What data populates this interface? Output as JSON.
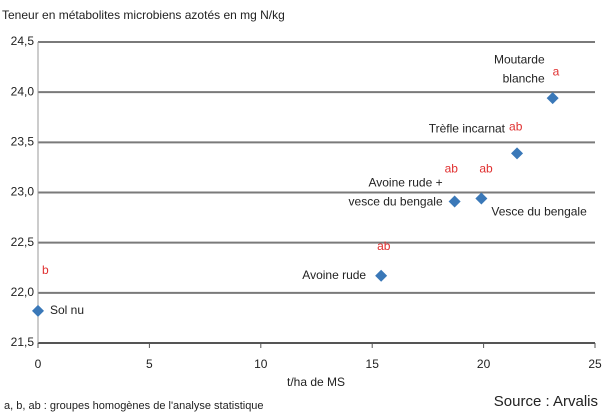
{
  "chart_data": {
    "type": "scatter",
    "y_label": "Teneur en métabolites microbiens azotés en mg N/kg",
    "x_label": "t/ha de MS",
    "footnote": "a, b, ab : groupes homogènes de l'analyse statistique",
    "source": "Source : Arvalis",
    "color": "#3a78b8",
    "group_color": "#e03030",
    "grid": true,
    "x": [
      0,
      15.4,
      18.7,
      19.9,
      21.5,
      23.1
    ],
    "values": [
      21.82,
      22.17,
      22.91,
      22.94,
      23.39,
      23.94
    ],
    "point_labels": [
      [
        "Sol nu"
      ],
      [
        "Avoine rude"
      ],
      [
        "Avoine rude +",
        "vesce du bengale"
      ],
      [
        "Vesce du bengale"
      ],
      [
        "Trèfle incarnat"
      ],
      [
        "Moutarde",
        "blanche"
      ]
    ],
    "group_labels": [
      "b",
      "ab",
      "ab",
      "ab",
      "ab",
      "a"
    ],
    "xlim": [
      0,
      25
    ],
    "xticks": [
      0,
      5,
      10,
      15,
      20,
      25
    ],
    "ylim": [
      21.5,
      24.5
    ],
    "yticks": [
      {
        "value": 21.5,
        "label": "21,5"
      },
      {
        "value": 22,
        "label": "22,0"
      },
      {
        "value": 22.5,
        "label": "22,5"
      },
      {
        "value": 23,
        "label": "23,0"
      },
      {
        "value": 23.5,
        "label": "23,5"
      },
      {
        "value": 24,
        "label": "24,0"
      },
      {
        "value": 24.5,
        "label": "24,5"
      }
    ]
  }
}
